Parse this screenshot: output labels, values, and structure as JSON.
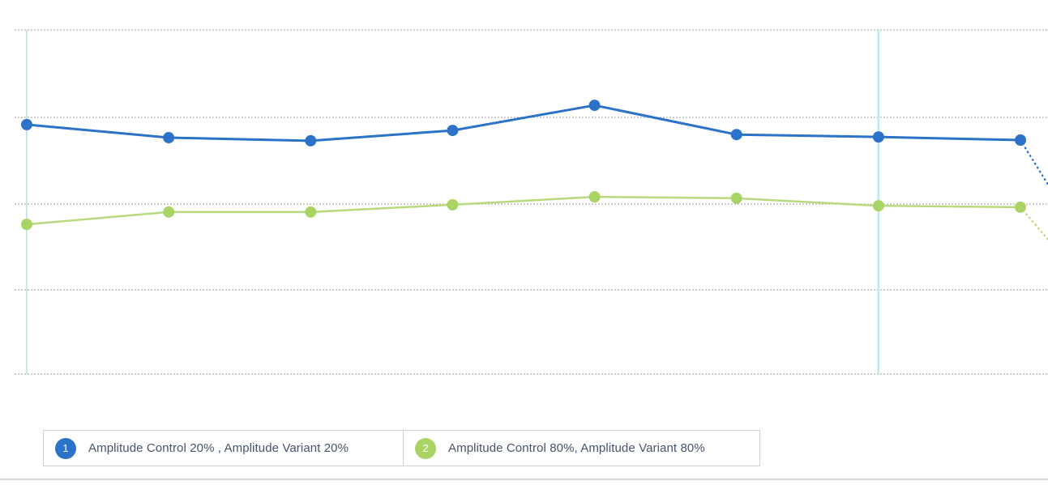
{
  "chart_data": {
    "type": "line",
    "title": "",
    "xlabel": "",
    "ylabel": "",
    "x_tick_labels_visible": false,
    "y_tick_labels_visible": false,
    "x_point_count": 8,
    "y_scale_note": "values_pct are percent of plot height measured up from the bottom gridline (no axis labels shown in chart)",
    "gridlines_pct": [
      0,
      24.5,
      49.4,
      74.6,
      100
    ],
    "grid_style": "dotted",
    "guide_line_indices": [
      0,
      6
    ],
    "legend_position": "bottom",
    "series": [
      {
        "name": "Amplitude Control 20% , Amplitude Variant 20%",
        "badge": "1",
        "color": "#2b72c8",
        "line_color": "#2b72c8",
        "values_pct": [
          72.5,
          68.7,
          67.8,
          70.8,
          78.1,
          69.6,
          68.9,
          68.0
        ],
        "projection_end_pct": 55.1
      },
      {
        "name": "Amplitude Control 80%, Amplitude Variant 80%",
        "badge": "2",
        "color": "#a9d464",
        "line_color": "#b7da7d",
        "values_pct": [
          43.5,
          47.1,
          47.1,
          49.2,
          51.5,
          51.1,
          48.9,
          48.5
        ],
        "projection_end_pct": 39.1
      }
    ]
  },
  "legend": {
    "items": [
      {
        "badge": "1",
        "label": "Amplitude Control 20% , Amplitude Variant 20%"
      },
      {
        "badge": "2",
        "label": "Amplitude Control 80%, Amplitude Variant 80%"
      }
    ]
  },
  "colors": {
    "series1_blue": "#2b72c8",
    "series2_green": "#a9d464",
    "series2_green_line": "#b7da7d",
    "gridline_gray": "#a8a8a8",
    "guide_cyan": "#bfe8e8",
    "legend_border": "#cfcfcf",
    "legend_text": "#46536a",
    "badge_text": "#ffffff",
    "bottom_divider": "#d5dade",
    "background": "#ffffff"
  }
}
